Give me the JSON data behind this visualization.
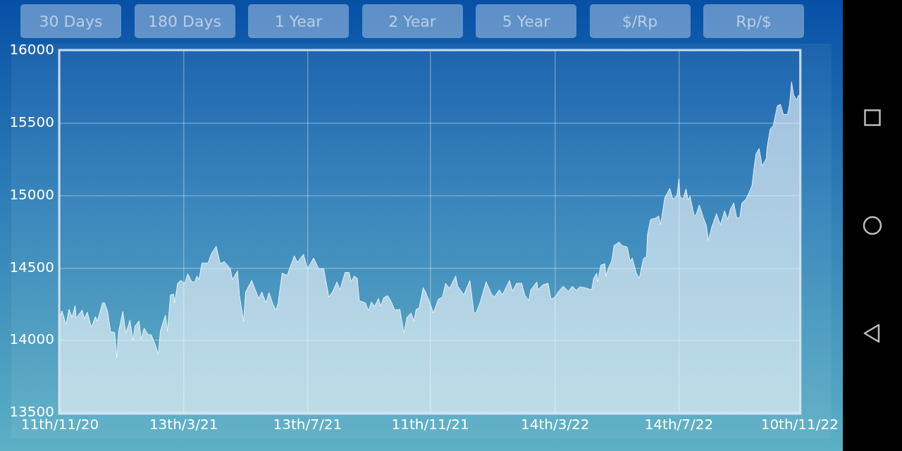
{
  "chart_data": {
    "type": "area",
    "annotations": [
      "30 Days",
      "180 Days",
      "1 Year",
      "2 Year",
      "5 Year",
      "$/Rp",
      "Rp/$"
    ],
    "x": [
      "2020-11-11",
      "2020-11-13",
      "2020-11-17",
      "2020-11-20",
      "2020-11-23",
      "2020-11-26",
      "2020-11-27",
      "2020-12-03",
      "2020-12-05",
      "2020-12-08",
      "2020-12-12",
      "2020-12-16",
      "2020-12-18",
      "2020-12-23",
      "2020-12-25",
      "2020-12-28",
      "2020-12-31",
      "2021-01-04",
      "2021-01-06",
      "2021-01-08",
      "2021-01-12",
      "2021-01-15",
      "2021-01-19",
      "2021-01-22",
      "2021-01-24",
      "2021-01-28",
      "2021-01-30",
      "2021-02-02",
      "2021-02-06",
      "2021-02-09",
      "2021-02-13",
      "2021-02-16",
      "2021-02-18",
      "2021-02-23",
      "2021-02-25",
      "2021-02-28",
      "2021-03-03",
      "2021-03-04",
      "2021-03-07",
      "2021-03-10",
      "2021-03-14",
      "2021-03-17",
      "2021-03-21",
      "2021-03-24",
      "2021-03-26",
      "2021-03-28",
      "2021-03-31",
      "2021-04-06",
      "2021-04-09",
      "2021-04-14",
      "2021-04-18",
      "2021-04-22",
      "2021-04-28",
      "2021-04-30",
      "2021-05-05",
      "2021-05-07",
      "2021-05-11",
      "2021-05-13",
      "2021-05-19",
      "2021-05-22",
      "2021-05-26",
      "2021-05-29",
      "2021-06-02",
      "2021-06-05",
      "2021-06-09",
      "2021-06-12",
      "2021-06-14",
      "2021-06-18",
      "2021-06-23",
      "2021-06-30",
      "2021-07-03",
      "2021-07-09",
      "2021-07-13",
      "2021-07-19",
      "2021-07-24",
      "2021-07-29",
      "2021-08-03",
      "2021-08-07",
      "2021-08-11",
      "2021-08-14",
      "2021-08-19",
      "2021-08-23",
      "2021-08-25",
      "2021-08-28",
      "2021-08-31",
      "2021-09-02",
      "2021-09-08",
      "2021-09-11",
      "2021-09-14",
      "2021-09-17",
      "2021-09-21",
      "2021-09-23",
      "2021-09-26",
      "2021-09-30",
      "2021-10-03",
      "2021-10-07",
      "2021-10-12",
      "2021-10-16",
      "2021-10-19",
      "2021-10-23",
      "2021-10-26",
      "2021-10-28",
      "2021-10-31",
      "2021-11-04",
      "2021-11-07",
      "2021-11-11",
      "2021-11-14",
      "2021-11-19",
      "2021-11-23",
      "2021-11-26",
      "2021-11-30",
      "2021-12-06",
      "2021-12-08",
      "2021-12-14",
      "2021-12-20",
      "2021-12-24",
      "2021-12-26",
      "2021-12-30",
      "2022-01-05",
      "2022-01-10",
      "2022-01-13",
      "2022-01-18",
      "2022-01-21",
      "2022-01-28",
      "2022-01-31",
      "2022-02-04",
      "2022-02-09",
      "2022-02-12",
      "2022-02-16",
      "2022-02-18",
      "2022-02-24",
      "2022-02-25",
      "2022-03-02",
      "2022-03-07",
      "2022-03-10",
      "2022-03-14",
      "2022-03-17",
      "2022-03-22",
      "2022-03-27",
      "2022-03-31",
      "2022-04-04",
      "2022-04-07",
      "2022-04-12",
      "2022-04-19",
      "2022-04-21",
      "2022-04-24",
      "2022-04-25",
      "2022-04-28",
      "2022-05-02",
      "2022-05-03",
      "2022-05-05",
      "2022-05-09",
      "2022-05-11",
      "2022-05-16",
      "2022-05-19",
      "2022-05-24",
      "2022-05-27",
      "2022-05-29",
      "2022-06-02",
      "2022-06-05",
      "2022-06-09",
      "2022-06-12",
      "2022-06-13",
      "2022-06-16",
      "2022-06-21",
      "2022-06-24",
      "2022-06-26",
      "2022-06-30",
      "2022-07-05",
      "2022-07-08",
      "2022-07-12",
      "2022-07-14",
      "2022-07-15",
      "2022-07-18",
      "2022-07-21",
      "2022-07-23",
      "2022-07-25",
      "2022-07-29",
      "2022-07-31",
      "2022-08-03",
      "2022-08-07",
      "2022-08-10",
      "2022-08-12",
      "2022-08-15",
      "2022-08-20",
      "2022-08-22",
      "2022-08-24",
      "2022-08-28",
      "2022-08-31",
      "2022-09-03",
      "2022-09-06",
      "2022-09-09",
      "2022-09-12",
      "2022-09-14",
      "2022-09-18",
      "2022-09-21",
      "2022-09-24",
      "2022-09-26",
      "2022-09-28",
      "2022-10-01",
      "2022-10-04",
      "2022-10-08",
      "2022-10-09",
      "2022-10-12",
      "2022-10-15",
      "2022-10-19",
      "2022-10-22",
      "2022-10-25",
      "2022-10-29",
      "2022-10-31",
      "2022-11-02",
      "2022-11-04",
      "2022-11-07",
      "2022-11-09",
      "2022-11-10"
    ],
    "series": [
      {
        "color": "#ffffff",
        "values": [
          14165,
          14205,
          14110,
          14215,
          14160,
          14240,
          14155,
          14210,
          14150,
          14195,
          14090,
          14165,
          14135,
          14260,
          14260,
          14200,
          14060,
          14055,
          13880,
          14065,
          14200,
          14050,
          14140,
          14000,
          14100,
          14135,
          14010,
          14085,
          14040,
          14040,
          13970,
          13905,
          14065,
          14175,
          14065,
          14315,
          14320,
          14260,
          14395,
          14415,
          14395,
          14460,
          14405,
          14405,
          14445,
          14420,
          14535,
          14535,
          14595,
          14650,
          14530,
          14545,
          14495,
          14420,
          14480,
          14310,
          14130,
          14335,
          14415,
          14360,
          14290,
          14335,
          14260,
          14330,
          14250,
          14210,
          14260,
          14465,
          14450,
          14585,
          14540,
          14595,
          14495,
          14570,
          14495,
          14495,
          14300,
          14340,
          14405,
          14350,
          14470,
          14470,
          14405,
          14445,
          14430,
          14275,
          14260,
          14205,
          14265,
          14235,
          14290,
          14235,
          14295,
          14310,
          14275,
          14210,
          14215,
          14050,
          14160,
          14190,
          14135,
          14215,
          14225,
          14365,
          14325,
          14250,
          14190,
          14285,
          14300,
          14395,
          14360,
          14445,
          14375,
          14315,
          14415,
          14190,
          14190,
          14260,
          14405,
          14325,
          14300,
          14350,
          14315,
          14415,
          14340,
          14395,
          14395,
          14315,
          14275,
          14350,
          14405,
          14350,
          14385,
          14395,
          14285,
          14300,
          14335,
          14375,
          14340,
          14375,
          14345,
          14370,
          14365,
          14350,
          14430,
          14465,
          14405,
          14520,
          14530,
          14445,
          14490,
          14555,
          14655,
          14680,
          14655,
          14645,
          14545,
          14570,
          14465,
          14430,
          14565,
          14580,
          14730,
          14835,
          14845,
          14860,
          14800,
          14985,
          15050,
          14975,
          15000,
          15115,
          14995,
          14975,
          15045,
          14970,
          14995,
          14860,
          14870,
          14935,
          14850,
          14795,
          14690,
          14775,
          14875,
          14835,
          14800,
          14895,
          14835,
          14910,
          14950,
          14845,
          14850,
          14950,
          14975,
          15020,
          15070,
          15190,
          15290,
          15325,
          15205,
          15255,
          15340,
          15460,
          15485,
          15620,
          15630,
          15560,
          15560,
          15630,
          15785,
          15695,
          15660,
          15695,
          15680
        ]
      }
    ],
    "xlim": [
      "2020-11-11",
      "2022-11-10"
    ],
    "xticks": [
      {
        "value": "2020-11-11",
        "label": "11th/11/20"
      },
      {
        "value": "2021-03-13",
        "label": "13th/3/21"
      },
      {
        "value": "2021-07-13",
        "label": "13th/7/21"
      },
      {
        "value": "2021-11-11",
        "label": "11th/11/21"
      },
      {
        "value": "2022-03-14",
        "label": "14th/3/22"
      },
      {
        "value": "2022-07-14",
        "label": "14th/7/22"
      },
      {
        "value": "2022-11-10",
        "label": "10th/11/22"
      }
    ],
    "ylim": [
      13500,
      16000
    ],
    "yticks": [
      13500,
      14000,
      14500,
      15000,
      15500,
      16000
    ],
    "grid": true
  }
}
